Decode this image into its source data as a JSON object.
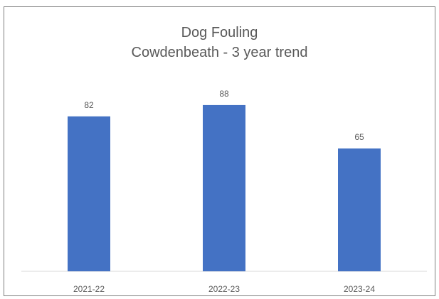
{
  "chart_data": {
    "type": "bar",
    "title": "Dog Fouling",
    "subtitle": "Cowdenbeath - 3 year trend",
    "categories": [
      "2021-22",
      "2022-23",
      "2023-24"
    ],
    "values": [
      82,
      88,
      65
    ],
    "data_labels": [
      "82",
      "88",
      "65"
    ],
    "xlabel": "",
    "ylabel": "",
    "ylim": [
      0,
      100
    ],
    "grid": false,
    "legend": "none",
    "bar_color": "#4472c4",
    "axis_color": "#d9d9d9"
  }
}
